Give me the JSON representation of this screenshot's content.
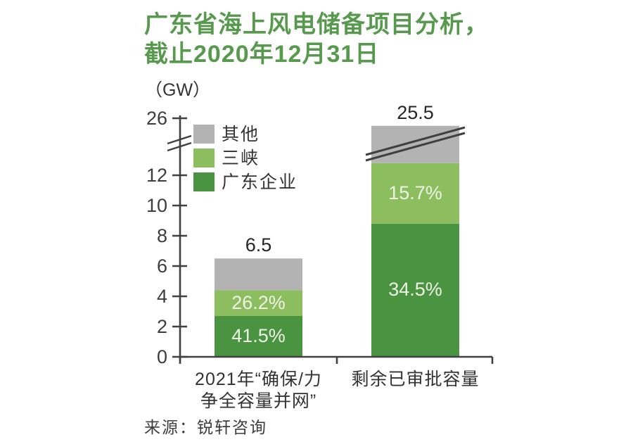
{
  "header": {
    "title": "广东省海上风电储备项目分析，\n截止2020年12月31日"
  },
  "source": {
    "label": "来源：锐轩咨询"
  },
  "chart_data": {
    "type": "bar",
    "stacked": true,
    "title": "广东省海上风电储备项目分析，截止2020年12月31日",
    "unit_label": "（GW）",
    "xlabel": "",
    "ylabel": "GW",
    "ylim": [
      0,
      26
    ],
    "y_ticks": [
      0,
      2,
      4,
      6,
      8,
      10,
      12,
      26
    ],
    "axis_break": {
      "between": [
        12,
        26
      ]
    },
    "grid": false,
    "legend_position": "top-left-inside",
    "series": [
      {
        "name": "广东企业",
        "color": "#4a9341"
      },
      {
        "name": "三峡",
        "color": "#8cbe5f"
      },
      {
        "name": "其他",
        "color": "#b3b3b3"
      }
    ],
    "categories": [
      "2021年“确保/力\n争全容量并网”",
      "剩余已审批容量"
    ],
    "bars": [
      {
        "category": "2021年“确保/力\n争全容量并网”",
        "total": 6.5,
        "total_label": "6.5",
        "segments": [
          {
            "series": "广东企业",
            "percent": 41.5,
            "label": "41.5%"
          },
          {
            "series": "三峡",
            "percent": 26.2,
            "label": "26.2%"
          },
          {
            "series": "其他",
            "label": ""
          }
        ]
      },
      {
        "category": "剩余已审批容量",
        "total": 25.5,
        "total_label": "25.5",
        "segments": [
          {
            "series": "广东企业",
            "percent": 34.5,
            "label": "34.5%"
          },
          {
            "series": "三峡",
            "percent": 15.7,
            "label": "15.7%"
          },
          {
            "series": "其他",
            "label": ""
          }
        ]
      }
    ],
    "axis_color": "#404040",
    "text_color": "#333333"
  }
}
